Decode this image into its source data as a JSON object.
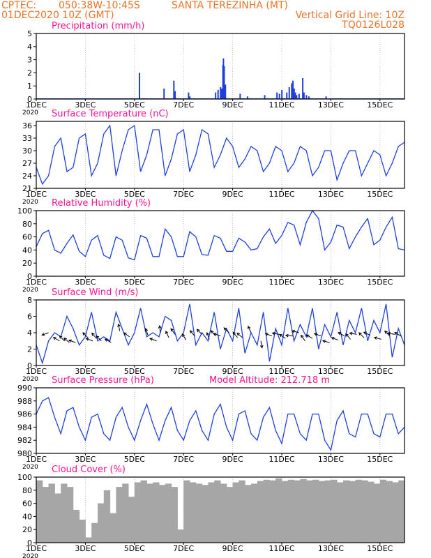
{
  "header": {
    "source": "CPTEC:",
    "coords": "050:38W-10:45S",
    "station": "SANTA TEREZINHA (MT)",
    "run": "01DEC2020 10Z (GMT)",
    "grid_note": "Vertical Grid Line: 10Z",
    "code": "TQ0126L028"
  },
  "x_axis": {
    "tick_labels": [
      "1DEC",
      "3DEC",
      "5DEC",
      "7DEC",
      "9DEC",
      "11DEC",
      "13DEC",
      "15DEC"
    ],
    "tick_days": [
      1,
      3,
      5,
      7,
      9,
      11,
      13,
      15
    ],
    "range_days": [
      1,
      16
    ],
    "year_label": "2020"
  },
  "colors": {
    "header": "#e9742b",
    "title": "#ff1493",
    "line": "#1f3fdc",
    "cloud": "#a6a6a6",
    "grid": "#aaaaaa",
    "arrow": "#000000"
  },
  "chart_data": [
    {
      "type": "bar",
      "title": "Precipitation (mm/h)",
      "ylim": [
        0,
        5
      ],
      "yticks": [
        0,
        1,
        2,
        3,
        4,
        5
      ],
      "x_unit": "day",
      "x": [
        5.2,
        6.2,
        6.6,
        6.65,
        7.2,
        7.25,
        8.3,
        8.4,
        8.5,
        8.55,
        8.6,
        8.62,
        8.65,
        8.7,
        9.3,
        9.6,
        10.3,
        10.8,
        10.9,
        11.0,
        11.2,
        11.3,
        11.4,
        11.45,
        11.5,
        11.55,
        11.6,
        11.7,
        11.85,
        11.9,
        12.0,
        12.1,
        12.8
      ],
      "values": [
        2.0,
        0.8,
        1.4,
        0.6,
        0.5,
        0.2,
        0.5,
        0.7,
        0.9,
        0.8,
        2.6,
        3.1,
        2.5,
        1.1,
        0.4,
        0.2,
        0.3,
        0.5,
        0.4,
        0.7,
        0.5,
        0.9,
        1.2,
        1.4,
        0.8,
        0.5,
        0.3,
        0.4,
        1.6,
        0.5,
        0.3,
        0.2,
        0.2
      ]
    },
    {
      "type": "line",
      "title": "Surface Temperature (nC)",
      "ylim": [
        21,
        37
      ],
      "yticks": [
        21,
        24,
        27,
        30,
        33,
        36
      ],
      "x_unit": "day",
      "x": [
        1.0,
        1.25,
        1.5,
        1.75,
        2.0,
        2.25,
        2.5,
        2.75,
        3.0,
        3.25,
        3.5,
        3.75,
        4.0,
        4.25,
        4.5,
        4.75,
        5.0,
        5.25,
        5.5,
        5.75,
        6.0,
        6.25,
        6.5,
        6.75,
        7.0,
        7.25,
        7.5,
        7.75,
        8.0,
        8.25,
        8.5,
        8.75,
        9.0,
        9.25,
        9.5,
        9.75,
        10.0,
        10.25,
        10.5,
        10.75,
        11.0,
        11.25,
        11.5,
        11.75,
        12.0,
        12.25,
        12.5,
        12.75,
        13.0,
        13.25,
        13.5,
        13.75,
        14.0,
        14.25,
        14.5,
        14.75,
        15.0,
        15.25,
        15.5,
        15.75,
        16.0
      ],
      "values": [
        26,
        22,
        24,
        31,
        33,
        25,
        26,
        33,
        34,
        24,
        27,
        34,
        36,
        24,
        30,
        35,
        36,
        25,
        29,
        35,
        35,
        24,
        28,
        34,
        35,
        25,
        29,
        35,
        34,
        26,
        29,
        33,
        31,
        26,
        28,
        31,
        30,
        25,
        27,
        31,
        30,
        25,
        27,
        31,
        30,
        24,
        26,
        30,
        30,
        23,
        27,
        30,
        30,
        24,
        27,
        30,
        29,
        24,
        27,
        31,
        32
      ]
    },
    {
      "type": "line",
      "title": "Relative Humidity (%)",
      "ylim": [
        0,
        100
      ],
      "yticks": [
        0,
        20,
        40,
        60,
        80,
        100
      ],
      "x_unit": "day",
      "x": [
        1.0,
        1.25,
        1.5,
        1.75,
        2.0,
        2.25,
        2.5,
        2.75,
        3.0,
        3.25,
        3.5,
        3.75,
        4.0,
        4.25,
        4.5,
        4.75,
        5.0,
        5.25,
        5.5,
        5.75,
        6.0,
        6.25,
        6.5,
        6.75,
        7.0,
        7.25,
        7.5,
        7.75,
        8.0,
        8.25,
        8.5,
        8.75,
        9.0,
        9.25,
        9.5,
        9.75,
        10.0,
        10.25,
        10.5,
        10.75,
        11.0,
        11.25,
        11.5,
        11.75,
        12.0,
        12.25,
        12.5,
        12.75,
        13.0,
        13.25,
        13.5,
        13.75,
        14.0,
        14.25,
        14.5,
        14.75,
        15.0,
        15.25,
        15.5,
        15.75,
        16.0
      ],
      "values": [
        45,
        65,
        70,
        40,
        35,
        50,
        63,
        38,
        30,
        55,
        62,
        32,
        27,
        60,
        55,
        28,
        25,
        62,
        58,
        30,
        30,
        72,
        60,
        30,
        30,
        68,
        60,
        33,
        32,
        62,
        58,
        38,
        38,
        58,
        52,
        40,
        42,
        60,
        72,
        50,
        62,
        82,
        78,
        48,
        82,
        100,
        88,
        40,
        52,
        78,
        75,
        42,
        60,
        75,
        88,
        48,
        55,
        75,
        90,
        42,
        40
      ]
    },
    {
      "type": "line",
      "title": "Surface Wind (m/s)",
      "ylim": [
        0,
        8
      ],
      "yticks": [
        0,
        2,
        4,
        6,
        8
      ],
      "x_unit": "day",
      "x": [
        1.0,
        1.25,
        1.5,
        1.75,
        2.0,
        2.25,
        2.5,
        2.75,
        3.0,
        3.25,
        3.5,
        3.75,
        4.0,
        4.25,
        4.5,
        4.75,
        5.0,
        5.25,
        5.5,
        5.75,
        6.0,
        6.25,
        6.5,
        6.75,
        7.0,
        7.25,
        7.5,
        7.75,
        8.0,
        8.25,
        8.5,
        8.75,
        9.0,
        9.25,
        9.5,
        9.75,
        10.0,
        10.25,
        10.5,
        10.75,
        11.0,
        11.25,
        11.5,
        11.75,
        12.0,
        12.25,
        12.5,
        12.75,
        13.0,
        13.25,
        13.5,
        13.75,
        14.0,
        14.25,
        14.5,
        14.75,
        15.0,
        15.25,
        15.5,
        15.75,
        16.0
      ],
      "values": [
        2.5,
        0.3,
        3.0,
        4.0,
        3.5,
        6.0,
        4.5,
        2.5,
        3.5,
        6.5,
        3.0,
        3.5,
        3.0,
        6.5,
        4.5,
        2.5,
        4.0,
        7.0,
        3.5,
        4.0,
        3.5,
        6.0,
        5.5,
        3.0,
        4.0,
        7.5,
        2.5,
        4.0,
        3.0,
        6.5,
        2.0,
        4.5,
        3.0,
        7.0,
        1.5,
        4.0,
        2.5,
        6.5,
        0.5,
        4.5,
        2.5,
        7.0,
        3.0,
        5.0,
        3.5,
        7.0,
        2.0,
        5.0,
        3.5,
        6.5,
        2.5,
        5.5,
        4.0,
        7.0,
        3.0,
        5.5,
        4.0,
        7.5,
        1.0,
        4.5,
        2.5
      ],
      "arrows": {
        "x": [
          1.5,
          1.95,
          2.15,
          2.35,
          2.6,
          3.1,
          3.3,
          3.45,
          3.65,
          4.05,
          4.4,
          4.8,
          5.55,
          5.9,
          6.05,
          6.4,
          6.65,
          7.1,
          7.45,
          7.75,
          8.05,
          8.3,
          8.5,
          8.85,
          9.2,
          9.4,
          9.75,
          10.15,
          10.6,
          10.9,
          11.15,
          11.45,
          11.7,
          11.95,
          12.25,
          12.6,
          12.95,
          13.3,
          13.55,
          13.8,
          14.05,
          14.35,
          14.6,
          15.05,
          15.4,
          15.6,
          15.85
        ],
        "speed": [
          4.0,
          3.0,
          3.0,
          2.8,
          2.8,
          3.4,
          3.0,
          3.3,
          3.0,
          2.8,
          4.2,
          3.5,
          3.7,
          3.0,
          4.0,
          3.4,
          3.8,
          3.1,
          3.6,
          3.8,
          3.2,
          3.6,
          3.6,
          4.0,
          3.4,
          3.4,
          4.0,
          3.0,
          3.6,
          3.8,
          3.3,
          3.6,
          4.0,
          3.0,
          3.3,
          3.6,
          2.8,
          3.1,
          3.6,
          3.2,
          3.8,
          3.4,
          3.7,
          3.2,
          3.6,
          3.8,
          3.6
        ],
        "dir_deg": [
          160,
          210,
          225,
          220,
          200,
          225,
          200,
          230,
          225,
          210,
          260,
          215,
          250,
          200,
          265,
          245,
          235,
          240,
          230,
          225,
          250,
          230,
          200,
          225,
          230,
          220,
          245,
          80,
          200,
          190,
          215,
          185,
          195,
          235,
          210,
          200,
          195,
          200,
          210,
          230,
          190,
          225,
          205,
          195,
          225,
          190,
          210
        ]
      }
    },
    {
      "type": "line",
      "title": "Surface Pressure (hPa)",
      "annotation": "Model Altitude: 212.718 m",
      "ylim": [
        980,
        990
      ],
      "yticks": [
        980,
        982,
        984,
        986,
        988,
        990
      ],
      "x_unit": "day",
      "x": [
        1.0,
        1.25,
        1.5,
        1.75,
        2.0,
        2.25,
        2.5,
        2.75,
        3.0,
        3.25,
        3.5,
        3.75,
        4.0,
        4.25,
        4.5,
        4.75,
        5.0,
        5.25,
        5.5,
        5.75,
        6.0,
        6.25,
        6.5,
        6.75,
        7.0,
        7.25,
        7.5,
        7.75,
        8.0,
        8.25,
        8.5,
        8.75,
        9.0,
        9.25,
        9.5,
        9.75,
        10.0,
        10.25,
        10.5,
        10.75,
        11.0,
        11.25,
        11.5,
        11.75,
        12.0,
        12.25,
        12.5,
        12.75,
        13.0,
        13.25,
        13.5,
        13.75,
        14.0,
        14.25,
        14.5,
        14.75,
        15.0,
        15.25,
        15.5,
        15.75,
        16.0
      ],
      "values": [
        986.0,
        988.0,
        988.5,
        985.5,
        983.0,
        986.5,
        987.0,
        984.0,
        982.0,
        985.5,
        986.0,
        983.0,
        982.0,
        985.5,
        987.0,
        984.0,
        982.0,
        985.0,
        987.5,
        984.5,
        982.0,
        985.0,
        987.0,
        983.5,
        982.0,
        985.0,
        986.5,
        983.5,
        982.0,
        986.0,
        987.5,
        984.0,
        982.0,
        986.0,
        986.5,
        983.0,
        982.0,
        985.5,
        987.0,
        983.5,
        981.5,
        986.0,
        986.0,
        983.0,
        982.0,
        986.0,
        986.0,
        982.0,
        980.5,
        985.0,
        986.5,
        983.0,
        982.5,
        986.0,
        986.0,
        983.0,
        982.5,
        986.0,
        986.0,
        983.0,
        984.0
      ]
    },
    {
      "type": "area",
      "title": "Cloud Cover (%)",
      "ylim": [
        0,
        100
      ],
      "yticks": [
        0,
        20,
        40,
        60,
        80,
        100
      ],
      "x_unit": "day",
      "x": [
        1.0,
        1.25,
        1.5,
        1.75,
        2.0,
        2.25,
        2.5,
        2.75,
        3.0,
        3.25,
        3.5,
        3.75,
        4.0,
        4.25,
        4.5,
        4.75,
        5.0,
        5.25,
        5.5,
        5.75,
        6.0,
        6.25,
        6.5,
        6.75,
        7.0,
        7.25,
        7.5,
        7.75,
        8.0,
        8.25,
        8.5,
        8.75,
        9.0,
        9.25,
        9.5,
        9.75,
        10.0,
        10.25,
        10.5,
        10.75,
        11.0,
        11.25,
        11.5,
        11.75,
        12.0,
        12.25,
        12.5,
        12.75,
        13.0,
        13.25,
        13.5,
        13.75,
        14.0,
        14.25,
        14.5,
        14.75,
        15.0,
        15.25,
        15.5,
        15.75,
        16.0
      ],
      "values": [
        95,
        85,
        90,
        75,
        90,
        85,
        50,
        35,
        8,
        30,
        60,
        80,
        45,
        85,
        90,
        70,
        92,
        95,
        90,
        92,
        88,
        90,
        85,
        20,
        95,
        92,
        90,
        88,
        92,
        95,
        90,
        85,
        92,
        95,
        88,
        90,
        94,
        96,
        95,
        98,
        94,
        96,
        95,
        97,
        95,
        96,
        94,
        95,
        96,
        92,
        95,
        94,
        96,
        95,
        93,
        90,
        96,
        94,
        92,
        95,
        96
      ]
    }
  ]
}
